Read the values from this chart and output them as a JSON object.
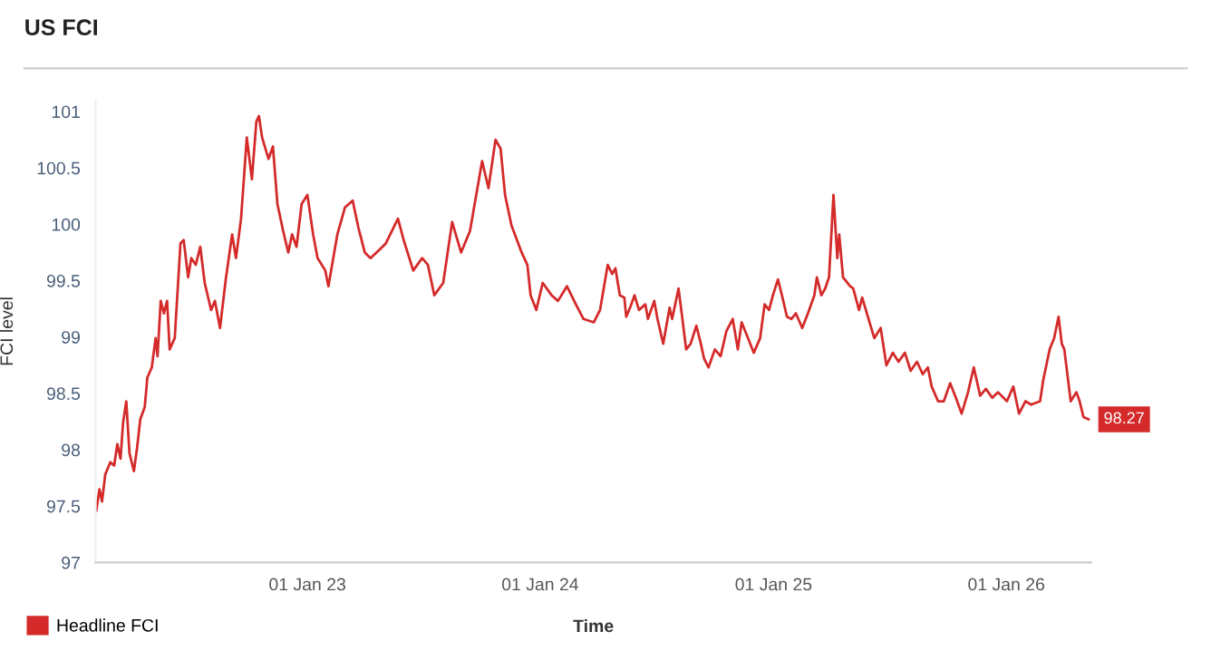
{
  "chart_data": {
    "type": "line",
    "title": "US FCI",
    "xlabel": "Time",
    "ylabel": "FCI level",
    "xlim": [
      "2022-02-03",
      "2026-05-14"
    ],
    "xticks": [
      {
        "value": "2023-01-01",
        "label": "01 Jan 23"
      },
      {
        "value": "2024-01-01",
        "label": "01 Jan 24"
      },
      {
        "value": "2025-01-01",
        "label": "01 Jan 25"
      },
      {
        "value": "2026-01-01",
        "label": "01 Jan 26"
      }
    ],
    "ylim": [
      97,
      101.1
    ],
    "yticks": [
      97,
      97.5,
      98,
      98.5,
      99,
      99.5,
      100,
      100.5,
      101
    ],
    "grid": false,
    "legend": "bottom left",
    "marker": "none",
    "line_style": "solid",
    "annotations": [
      {
        "text": "98.27",
        "x": "2026-05-10",
        "y": 98.27
      }
    ],
    "series": [
      {
        "name": "Headline FCI",
        "color": "#d42a2a",
        "x": [
          "2022-02-04",
          "2022-02-09",
          "2022-02-13",
          "2022-02-18",
          "2022-02-26",
          "2022-03-04",
          "2022-03-09",
          "2022-03-14",
          "2022-03-18",
          "2022-03-23",
          "2022-03-28",
          "2022-04-04",
          "2022-04-09",
          "2022-04-14",
          "2022-04-21",
          "2022-04-25",
          "2022-05-02",
          "2022-05-08",
          "2022-05-11",
          "2022-05-16",
          "2022-05-21",
          "2022-05-26",
          "2022-05-30",
          "2022-06-07",
          "2022-06-16",
          "2022-06-21",
          "2022-06-28",
          "2022-07-03",
          "2022-07-10",
          "2022-07-17",
          "2022-07-24",
          "2022-08-03",
          "2022-08-09",
          "2022-08-17",
          "2022-08-26",
          "2022-09-05",
          "2022-09-11",
          "2022-09-19",
          "2022-09-28",
          "2022-10-06",
          "2022-10-13",
          "2022-10-17",
          "2022-10-22",
          "2022-11-01",
          "2022-11-08",
          "2022-11-15",
          "2022-11-24",
          "2022-12-02",
          "2022-12-08",
          "2022-12-15",
          "2022-12-23",
          "2023-01-01",
          "2023-01-10",
          "2023-01-17",
          "2023-01-29",
          "2023-02-03",
          "2023-02-17",
          "2023-03-01",
          "2023-03-13",
          "2023-03-22",
          "2023-04-01",
          "2023-04-10",
          "2023-04-25",
          "2023-05-04",
          "2023-05-23",
          "2023-06-01",
          "2023-06-16",
          "2023-06-30",
          "2023-07-09",
          "2023-07-19",
          "2023-08-02",
          "2023-08-16",
          "2023-08-30",
          "2023-09-13",
          "2023-10-02",
          "2023-10-12",
          "2023-10-23",
          "2023-10-31",
          "2023-11-07",
          "2023-11-17",
          "2023-12-03",
          "2023-12-12",
          "2023-12-17",
          "2023-12-26",
          "2024-01-05",
          "2024-01-19",
          "2024-01-29",
          "2024-02-12",
          "2024-02-26",
          "2024-03-09",
          "2024-03-25",
          "2024-04-04",
          "2024-04-16",
          "2024-04-23",
          "2024-04-28",
          "2024-05-05",
          "2024-05-12",
          "2024-05-15",
          "2024-05-21",
          "2024-05-28",
          "2024-06-04",
          "2024-06-14",
          "2024-06-18",
          "2024-06-28",
          "2024-07-03",
          "2024-07-12",
          "2024-07-22",
          "2024-07-26",
          "2024-08-05",
          "2024-08-10",
          "2024-08-17",
          "2024-08-24",
          "2024-09-02",
          "2024-09-09",
          "2024-09-14",
          "2024-09-21",
          "2024-10-01",
          "2024-10-10",
          "2024-10-19",
          "2024-10-29",
          "2024-11-06",
          "2024-11-12",
          "2024-11-22",
          "2024-12-01",
          "2024-12-11",
          "2024-12-18",
          "2024-12-25",
          "2024-12-31",
          "2025-01-08",
          "2025-01-15",
          "2025-01-22",
          "2025-01-29",
          "2025-02-05",
          "2025-02-15",
          "2025-02-24",
          "2025-03-06",
          "2025-03-10",
          "2025-03-17",
          "2025-03-23",
          "2025-03-29",
          "2025-04-05",
          "2025-04-11",
          "2025-04-14",
          "2025-04-20",
          "2025-05-01",
          "2025-05-06",
          "2025-05-15",
          "2025-05-20",
          "2025-05-30",
          "2025-06-08",
          "2025-06-18",
          "2025-06-27",
          "2025-07-07",
          "2025-07-16",
          "2025-07-26",
          "2025-08-04",
          "2025-08-14",
          "2025-08-23",
          "2025-08-31",
          "2025-09-06",
          "2025-09-16",
          "2025-09-25",
          "2025-10-05",
          "2025-10-14",
          "2025-10-23",
          "2025-11-02",
          "2025-11-11",
          "2025-11-21",
          "2025-11-30",
          "2025-12-10",
          "2025-12-19",
          "2026-01-02",
          "2026-01-12",
          "2026-01-21",
          "2026-01-31",
          "2026-02-09",
          "2026-02-23",
          "2026-02-28",
          "2026-03-10",
          "2026-03-17",
          "2026-03-24",
          "2026-03-29",
          "2026-04-02",
          "2026-04-12",
          "2026-04-21",
          "2026-04-26",
          "2026-05-02",
          "2026-05-10"
        ],
        "values": [
          97.46,
          97.65,
          97.54,
          97.78,
          97.89,
          97.86,
          98.05,
          97.92,
          98.24,
          98.43,
          97.97,
          97.81,
          98.02,
          98.27,
          98.38,
          98.64,
          98.73,
          98.99,
          98.83,
          99.32,
          99.21,
          99.32,
          98.89,
          98.99,
          99.83,
          99.86,
          99.53,
          99.7,
          99.64,
          99.8,
          99.48,
          99.24,
          99.32,
          99.08,
          99.51,
          99.91,
          99.7,
          100.05,
          100.77,
          100.4,
          100.91,
          100.96,
          100.77,
          100.58,
          100.69,
          100.18,
          99.94,
          99.75,
          99.91,
          99.8,
          100.18,
          100.26,
          99.91,
          99.7,
          99.59,
          99.45,
          99.91,
          100.15,
          100.21,
          99.97,
          99.75,
          99.7,
          99.78,
          99.83,
          100.05,
          99.86,
          99.59,
          99.7,
          99.64,
          99.37,
          99.48,
          100.02,
          99.75,
          99.94,
          100.56,
          100.32,
          100.75,
          100.67,
          100.26,
          99.99,
          99.75,
          99.64,
          99.37,
          99.24,
          99.48,
          99.37,
          99.32,
          99.45,
          99.29,
          99.16,
          99.13,
          99.24,
          99.64,
          99.56,
          99.61,
          99.37,
          99.35,
          99.18,
          99.26,
          99.37,
          99.24,
          99.29,
          99.16,
          99.32,
          99.16,
          98.94,
          99.26,
          99.16,
          99.43,
          99.21,
          98.89,
          98.94,
          99.1,
          98.94,
          98.81,
          98.73,
          98.89,
          98.83,
          99.05,
          99.16,
          98.89,
          99.13,
          98.99,
          98.86,
          98.99,
          99.29,
          99.24,
          99.37,
          99.51,
          99.35,
          99.18,
          99.16,
          99.21,
          99.08,
          99.21,
          99.37,
          99.53,
          99.37,
          99.43,
          99.53,
          100.26,
          99.7,
          99.91,
          99.53,
          99.45,
          99.43,
          99.24,
          99.35,
          99.16,
          98.99,
          99.08,
          98.75,
          98.86,
          98.78,
          98.86,
          98.7,
          98.78,
          98.67,
          98.73,
          98.56,
          98.43,
          98.43,
          98.59,
          98.46,
          98.32,
          98.51,
          98.73,
          98.48,
          98.54,
          98.46,
          98.51,
          98.43,
          98.56,
          98.32,
          98.43,
          98.4,
          98.43,
          98.62,
          98.89,
          98.99,
          99.18,
          98.94,
          98.89,
          98.43,
          98.51,
          98.43,
          98.29,
          98.27
        ]
      }
    ]
  }
}
